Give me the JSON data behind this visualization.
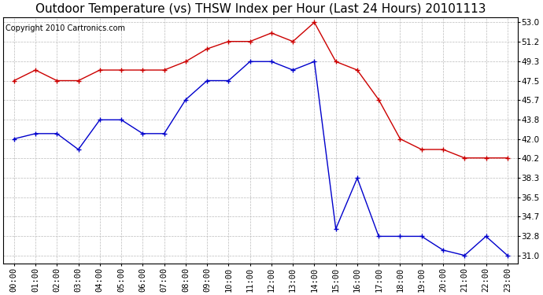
{
  "title": "Outdoor Temperature (vs) THSW Index per Hour (Last 24 Hours) 20101113",
  "copyright": "Copyright 2010 Cartronics.com",
  "hours": [
    "00:00",
    "01:00",
    "02:00",
    "03:00",
    "04:00",
    "05:00",
    "06:00",
    "07:00",
    "08:00",
    "09:00",
    "10:00",
    "11:00",
    "12:00",
    "13:00",
    "14:00",
    "15:00",
    "16:00",
    "17:00",
    "18:00",
    "19:00",
    "20:00",
    "21:00",
    "22:00",
    "23:00"
  ],
  "temp": [
    42.0,
    42.5,
    42.5,
    41.0,
    43.8,
    43.8,
    42.5,
    42.5,
    45.7,
    47.5,
    47.5,
    49.3,
    49.3,
    48.5,
    49.3,
    33.5,
    38.3,
    32.8,
    32.8,
    32.8,
    31.5,
    31.0,
    32.8,
    31.0
  ],
  "thsw": [
    47.5,
    48.5,
    47.5,
    47.5,
    48.5,
    48.5,
    48.5,
    48.5,
    49.3,
    50.5,
    51.2,
    51.2,
    52.0,
    51.2,
    53.0,
    49.3,
    48.5,
    45.7,
    42.0,
    41.0,
    41.0,
    40.2,
    40.2,
    40.2
  ],
  "temp_color": "#0000cc",
  "thsw_color": "#cc0000",
  "bg_color": "#ffffff",
  "grid_color": "#bbbbbb",
  "ymin": 31.0,
  "ymax": 53.0,
  "yticks": [
    31.0,
    32.8,
    34.7,
    36.5,
    38.3,
    40.2,
    42.0,
    43.8,
    45.7,
    47.5,
    49.3,
    51.2,
    53.0
  ],
  "title_fontsize": 11,
  "copyright_fontsize": 7,
  "tick_fontsize": 7.5
}
